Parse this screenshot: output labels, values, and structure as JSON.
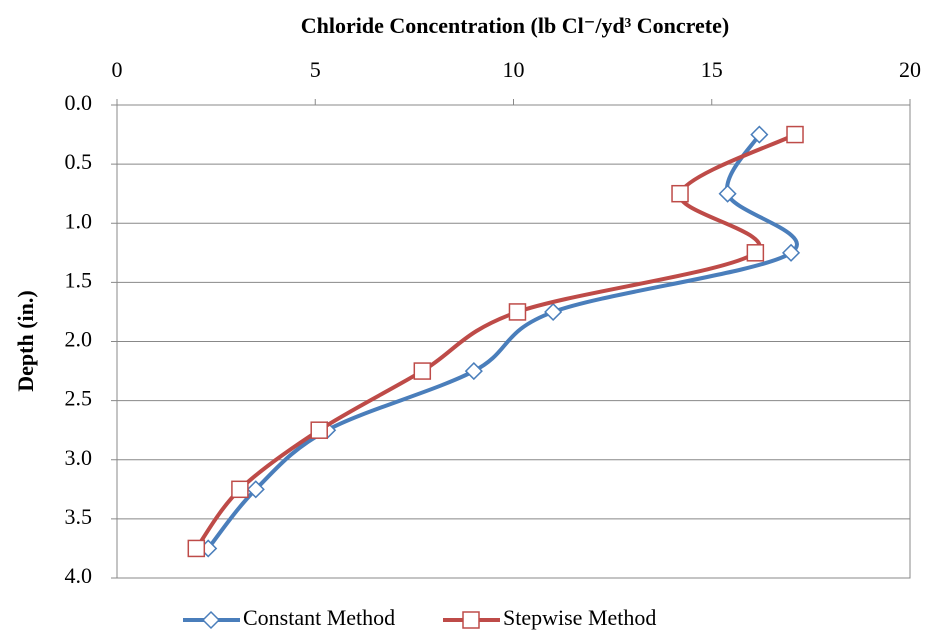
{
  "chart_data": {
    "type": "line",
    "title": "Chloride Concentration (lb Cl⁻/yd³ Concrete)",
    "y_label": "Depth (in.)",
    "xlim": [
      0,
      20
    ],
    "xticks": [
      0,
      5,
      10,
      15,
      20
    ],
    "ylim": [
      0,
      4
    ],
    "yticks": [
      {
        "value": 0,
        "label": "0.0"
      },
      0.5,
      {
        "value": 1,
        "label": "1.0"
      },
      1.5,
      {
        "value": 2,
        "label": "2.0"
      },
      2.5,
      {
        "value": 3,
        "label": "3.0"
      },
      3.5,
      {
        "value": 4,
        "label": "4.0"
      }
    ],
    "y_reversed": true,
    "x_axis_position": "top",
    "grid": true,
    "smooth": true,
    "legend": "bottom",
    "series": [
      {
        "name": "Constant Method",
        "color": "#4a7ebb",
        "marker": "diamond",
        "x": [
          16.2,
          15.4,
          17.0,
          11.0,
          9.0,
          5.3,
          3.5,
          2.3
        ],
        "values": [
          0.25,
          0.75,
          1.25,
          1.75,
          2.25,
          2.75,
          3.25,
          3.75
        ]
      },
      {
        "name": "Stepwise Method",
        "color": "#be4b48",
        "marker": "square",
        "x": [
          17.1,
          14.2,
          16.1,
          10.1,
          7.7,
          5.1,
          3.1,
          2.0
        ],
        "values": [
          0.25,
          0.75,
          1.25,
          1.75,
          2.25,
          2.75,
          3.25,
          3.75
        ]
      }
    ]
  }
}
